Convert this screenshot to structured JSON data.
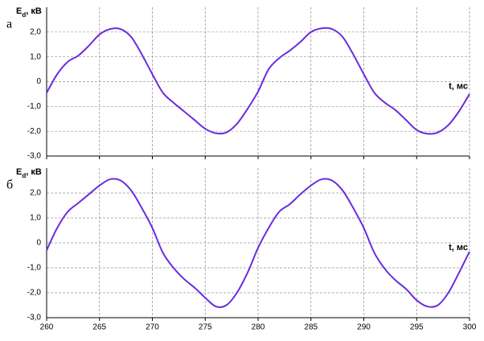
{
  "chart_data": [
    {
      "type": "line",
      "panel_label": "а",
      "ylabel_parts": [
        "E",
        "d",
        ", кВ"
      ],
      "xlabel": "t, мс",
      "show_xtick_labels": false,
      "grid": true,
      "xlim": [
        260,
        300
      ],
      "xticks": [
        260,
        265,
        270,
        275,
        280,
        285,
        290,
        295,
        300
      ],
      "ylim": [
        -3,
        3
      ],
      "yticks": [
        {
          "value": -3,
          "label": "-3,0"
        },
        {
          "value": -2,
          "label": "-2,0"
        },
        {
          "value": -1,
          "label": "-1,0"
        },
        0,
        {
          "value": 1,
          "label": "1,0"
        },
        {
          "value": 2,
          "label": "2,0"
        }
      ],
      "x": [
        260,
        261,
        262,
        263,
        264,
        265,
        266,
        267,
        268,
        269,
        270,
        271,
        272,
        273,
        274,
        275,
        276,
        277,
        278,
        279,
        280,
        281,
        282,
        283,
        284,
        285,
        286,
        287,
        288,
        289,
        290,
        291,
        292,
        293,
        294,
        295,
        296,
        297,
        298,
        299,
        300
      ],
      "series": [
        {
          "color": "#6a2ce0",
          "values": [
            -0.45,
            0.3,
            0.8,
            1.05,
            1.45,
            1.9,
            2.12,
            2.12,
            1.8,
            1.1,
            0.3,
            -0.45,
            -0.85,
            -1.2,
            -1.55,
            -1.9,
            -2.08,
            -2.05,
            -1.7,
            -1.1,
            -0.4,
            0.5,
            0.95,
            1.25,
            1.6,
            2.0,
            2.15,
            2.12,
            1.8,
            1.1,
            0.3,
            -0.45,
            -0.85,
            -1.15,
            -1.55,
            -1.95,
            -2.1,
            -2.05,
            -1.75,
            -1.2,
            -0.5
          ]
        }
      ]
    },
    {
      "type": "line",
      "panel_label": "б",
      "ylabel_parts": [
        "E",
        "d",
        ", кВ"
      ],
      "xlabel": "t, мс",
      "show_xtick_labels": true,
      "grid": true,
      "xlim": [
        260,
        300
      ],
      "xticks": [
        260,
        265,
        270,
        275,
        280,
        285,
        290,
        295,
        300
      ],
      "ylim": [
        -3,
        3
      ],
      "yticks": [
        {
          "value": -3,
          "label": "-3,0"
        },
        {
          "value": -2,
          "label": "-2,0"
        },
        {
          "value": -1,
          "label": "-1,0"
        },
        0,
        {
          "value": 1,
          "label": "1,0"
        },
        {
          "value": 2,
          "label": "2,0"
        }
      ],
      "x": [
        260,
        261,
        262,
        263,
        264,
        265,
        266,
        267,
        268,
        269,
        270,
        271,
        272,
        273,
        274,
        275,
        276,
        277,
        278,
        279,
        280,
        281,
        282,
        283,
        284,
        285,
        286,
        287,
        288,
        289,
        290,
        291,
        292,
        293,
        294,
        295,
        296,
        297,
        298,
        299,
        300
      ],
      "series": [
        {
          "color": "#6a2ce0",
          "values": [
            -0.3,
            0.6,
            1.25,
            1.6,
            1.95,
            2.3,
            2.55,
            2.5,
            2.1,
            1.4,
            0.6,
            -0.4,
            -1.0,
            -1.45,
            -1.8,
            -2.2,
            -2.55,
            -2.5,
            -2.0,
            -1.2,
            -0.2,
            0.6,
            1.25,
            1.55,
            1.95,
            2.3,
            2.55,
            2.5,
            2.1,
            1.4,
            0.6,
            -0.4,
            -1.05,
            -1.5,
            -1.85,
            -2.3,
            -2.55,
            -2.5,
            -2.0,
            -1.2,
            -0.35
          ]
        }
      ]
    }
  ]
}
